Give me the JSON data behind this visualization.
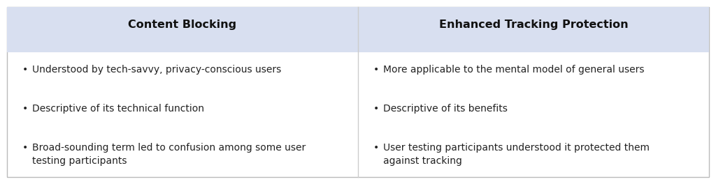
{
  "col1_header": "Content Blocking",
  "col2_header": "Enhanced Tracking Protection",
  "col1_bullets": [
    "Understood by tech-savvy, privacy-conscious users",
    "Descriptive of its technical function",
    "Broad-sounding term led to confusion among some user\ntesting participants"
  ],
  "col2_bullets": [
    "More applicable to the mental model of general users",
    "Descriptive of its benefits",
    "User testing participants understood it protected them\nagainst tracking"
  ],
  "header_bg_color": "#D8DFF0",
  "body_bg_color": "#FFFFFF",
  "border_color": "#BBBBBB",
  "header_text_color": "#111111",
  "body_text_color": "#222222",
  "divider_color": "#CCCCCC",
  "header_fontsize": 11.5,
  "body_fontsize": 10,
  "bullet_char": "•",
  "fig_width": 10.24,
  "fig_height": 2.64,
  "dpi": 100
}
